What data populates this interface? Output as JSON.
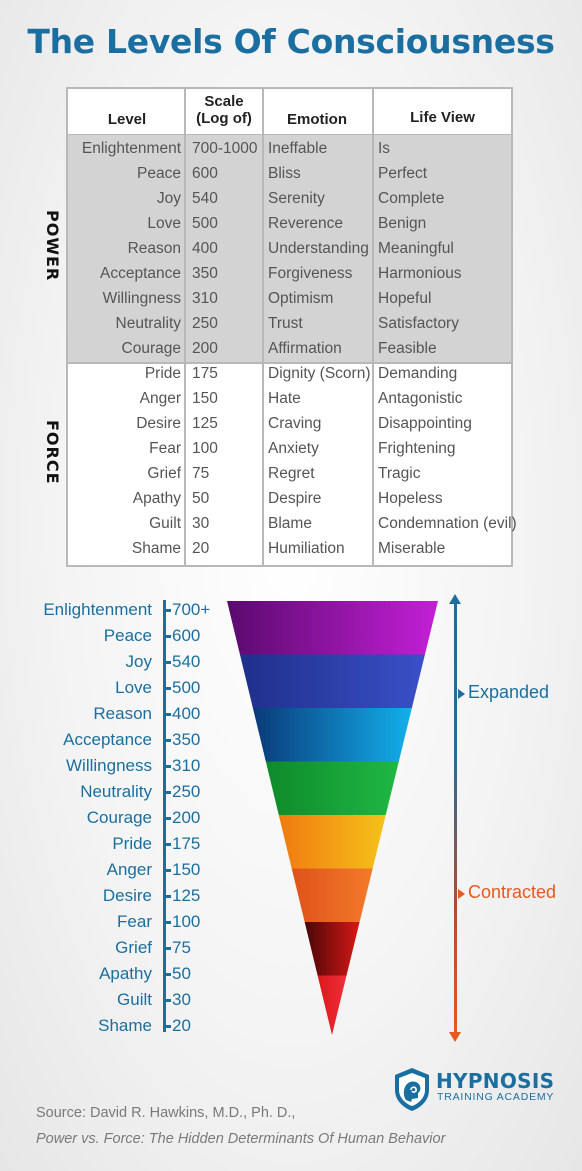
{
  "title": "The Levels Of Consciousness",
  "table": {
    "headers": {
      "level": "Level",
      "scale_line1": "Scale",
      "scale_line2": "(Log of)",
      "emotion": "Emotion",
      "life_view": "Life View"
    },
    "groups": {
      "power": "POWER",
      "force": "FORCE"
    },
    "rows": [
      {
        "level": "Enlightenment",
        "scale": "700-1000",
        "emotion": "Ineffable",
        "life_view": "Is"
      },
      {
        "level": "Peace",
        "scale": "600",
        "emotion": "Bliss",
        "life_view": "Perfect"
      },
      {
        "level": "Joy",
        "scale": "540",
        "emotion": "Serenity",
        "life_view": "Complete"
      },
      {
        "level": "Love",
        "scale": "500",
        "emotion": "Reverence",
        "life_view": "Benign"
      },
      {
        "level": "Reason",
        "scale": "400",
        "emotion": "Understanding",
        "life_view": "Meaningful"
      },
      {
        "level": "Acceptance",
        "scale": "350",
        "emotion": "Forgiveness",
        "life_view": "Harmonious"
      },
      {
        "level": "Willingness",
        "scale": "310",
        "emotion": "Optimism",
        "life_view": "Hopeful"
      },
      {
        "level": "Neutrality",
        "scale": "250",
        "emotion": "Trust",
        "life_view": "Satisfactory"
      },
      {
        "level": "Courage",
        "scale": "200",
        "emotion": "Affirmation",
        "life_view": "Feasible"
      },
      {
        "level": "Pride",
        "scale": "175",
        "emotion": "Dignity (Scorn)",
        "life_view": "Demanding"
      },
      {
        "level": "Anger",
        "scale": "150",
        "emotion": "Hate",
        "life_view": "Antagonistic"
      },
      {
        "level": "Desire",
        "scale": "125",
        "emotion": "Craving",
        "life_view": "Disappointing"
      },
      {
        "level": "Fear",
        "scale": "100",
        "emotion": "Anxiety",
        "life_view": "Frightening"
      },
      {
        "level": "Grief",
        "scale": "75",
        "emotion": "Regret",
        "life_view": "Tragic"
      },
      {
        "level": "Apathy",
        "scale": "50",
        "emotion": "Despire",
        "life_view": "Hopeless"
      },
      {
        "level": "Guilt",
        "scale": "30",
        "emotion": "Blame",
        "life_view": "Condemnation (evil)"
      },
      {
        "level": "Shame",
        "scale": "20",
        "emotion": "Humiliation",
        "life_view": "Miserable"
      }
    ]
  },
  "scale": [
    {
      "level": "Enlightenment",
      "value": "700+"
    },
    {
      "level": "Peace",
      "value": "600"
    },
    {
      "level": "Joy",
      "value": "540"
    },
    {
      "level": "Love",
      "value": "500"
    },
    {
      "level": "Reason",
      "value": "400"
    },
    {
      "level": "Acceptance",
      "value": "350"
    },
    {
      "level": "Willingness",
      "value": "310"
    },
    {
      "level": "Neutrality",
      "value": "250"
    },
    {
      "level": "Courage",
      "value": "200"
    },
    {
      "level": "Pride",
      "value": "175"
    },
    {
      "level": "Anger",
      "value": "150"
    },
    {
      "level": "Desire",
      "value": "125"
    },
    {
      "level": "Fear",
      "value": "100"
    },
    {
      "level": "Grief",
      "value": "75"
    },
    {
      "level": "Apathy",
      "value": "50"
    },
    {
      "level": "Guilt",
      "value": "30"
    },
    {
      "level": "Shame",
      "value": "20"
    }
  ],
  "funnel_colors": [
    {
      "from": "#5a0a6e",
      "to": "#c41fd6"
    },
    {
      "from": "#1f2f8a",
      "to": "#3a50c8"
    },
    {
      "from": "#0a3a78",
      "to": "#12b0ec"
    },
    {
      "from": "#0f8a2a",
      "to": "#1fb844"
    },
    {
      "from": "#f07a10",
      "to": "#f5c21a"
    },
    {
      "from": "#e0521a",
      "to": "#f27a2a"
    },
    {
      "from": "#4a0606",
      "to": "#d81818"
    },
    {
      "from": "#d81818",
      "to": "#f0303a"
    }
  ],
  "arrow": {
    "expanded": "Expanded",
    "contracted": "Contracted"
  },
  "colors": {
    "accent": "#1a6fa0",
    "contracted": "#e65a1e"
  },
  "logo": {
    "name": "HYPNOSIS",
    "tagline": "TRAINING ACADEMY",
    "icon": "head-spiral-icon"
  },
  "source": {
    "line1": "Source: David R. Hawkins, M.D., Ph. D.,",
    "line2": "Power vs. Force: The Hidden Determinants Of Human Behavior"
  }
}
